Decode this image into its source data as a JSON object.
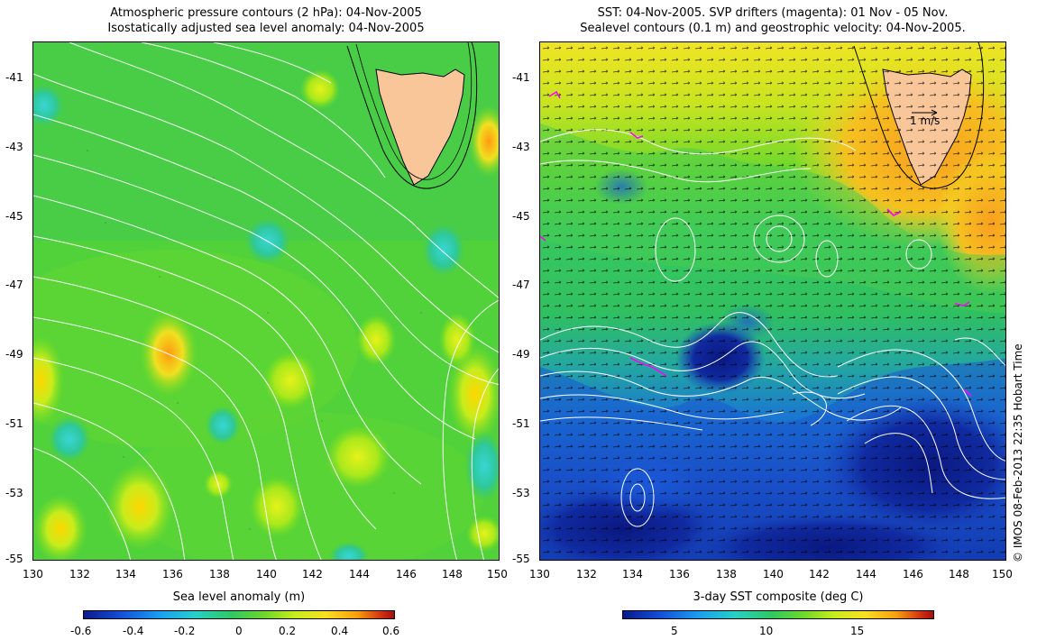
{
  "left_panel": {
    "title_line1": "Atmospheric pressure contours (2 hPa): 04-Nov-2005",
    "title_line2": "Isostatically adjusted sea level anomaly: 04-Nov-2005",
    "lat_ticks": [
      "-41",
      "-43",
      "-45",
      "-47",
      "-49",
      "-51",
      "-53",
      "-55"
    ],
    "lon_ticks": [
      "130",
      "132",
      "134",
      "136",
      "138",
      "140",
      "142",
      "144",
      "146",
      "148",
      "150"
    ],
    "colorbar": {
      "title": "Sea level anomaly (m)",
      "ticks": [
        "-0.6",
        "-0.4",
        "-0.2",
        "0",
        "0.2",
        "0.4",
        "0.6"
      ],
      "range": [
        -0.6,
        0.6
      ]
    }
  },
  "right_panel": {
    "title_line1": "SST: 04-Nov-2005. SVP drifters (magenta): 01 Nov - 05 Nov.",
    "title_line2": "Sealevel contours (0.1 m) and geostrophic velocity: 04-Nov-2005.",
    "lat_ticks": [
      "-41",
      "-43",
      "-45",
      "-47",
      "-49",
      "-51",
      "-53",
      "-55"
    ],
    "lon_ticks": [
      "130",
      "132",
      "134",
      "136",
      "138",
      "140",
      "142",
      "144",
      "146",
      "148",
      "150"
    ],
    "scale_arrow_label": "1 m/s",
    "colorbar": {
      "title": "3-day SST composite (deg C)",
      "ticks": [
        "5",
        "10",
        "15"
      ],
      "range": [
        2,
        19
      ]
    }
  },
  "map_extent": {
    "lon": [
      130,
      150
    ],
    "lat": [
      -55,
      -40
    ]
  },
  "credit": "© IMOS 08-Feb-2013 22:35 Hobart Time",
  "colors": {
    "land": "#f9c69a",
    "sla_contour": "#ffffff",
    "drifters": "#ff00ff",
    "vectors": "#000000"
  }
}
